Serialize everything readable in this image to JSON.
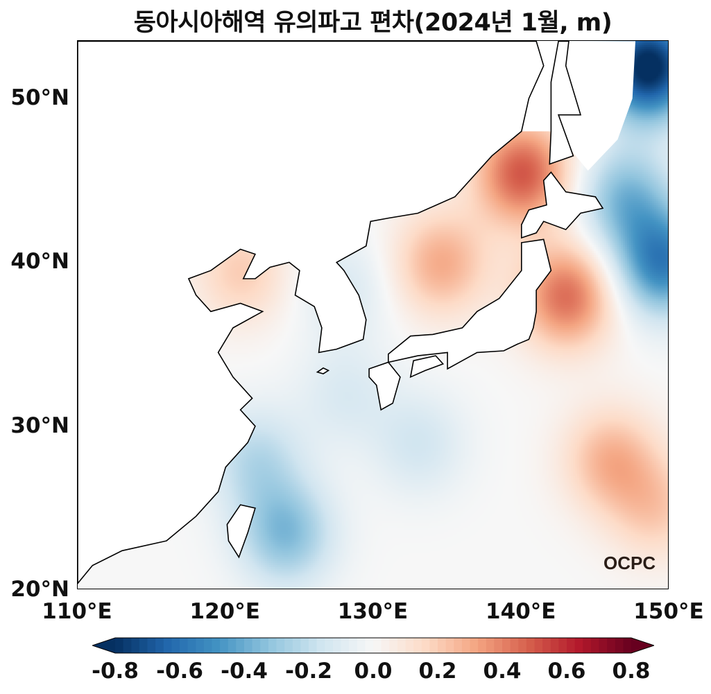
{
  "title": "동아시아해역 유의파고 편차(2024년 1월, m)",
  "logo_text": "OCPC",
  "chart_data": {
    "type": "heatmap",
    "title": "동아시아해역 유의파고 편차(2024년 1월, m)",
    "xlim": [
      110,
      150
    ],
    "ylim": [
      20,
      53.5
    ],
    "x_ticks": [
      "110°E",
      "120°E",
      "130°E",
      "140°E",
      "150°E"
    ],
    "y_ticks": [
      "20°N",
      "30°N",
      "40°N",
      "50°N"
    ],
    "colorbar": {
      "cmap": "RdBu_r",
      "range": [
        -0.8,
        0.8
      ],
      "extend": "both",
      "ticks": [
        "-0.8",
        "-0.6",
        "-0.4",
        "-0.2",
        "0.0",
        "0.2",
        "0.4",
        "0.6",
        "0.8"
      ],
      "colors": [
        "#053061",
        "#2166ac",
        "#4393c3",
        "#92c5de",
        "#d1e5f0",
        "#f7f7f7",
        "#fddbc7",
        "#f4a582",
        "#d6604d",
        "#b2182b",
        "#67001f"
      ]
    },
    "field_features": [
      {
        "lon": 140,
        "lat": 45.5,
        "value": 0.5
      },
      {
        "lon": 134.5,
        "lat": 40,
        "value": 0.3
      },
      {
        "lon": 143,
        "lat": 38,
        "value": 0.45
      },
      {
        "lon": 146,
        "lat": 28,
        "value": 0.28
      },
      {
        "lon": 149,
        "lat": 25,
        "value": 0.2
      },
      {
        "lon": 121,
        "lat": 39.5,
        "value": 0.2
      },
      {
        "lon": 124,
        "lat": 23.5,
        "value": -0.35
      },
      {
        "lon": 122,
        "lat": 28,
        "value": -0.22
      },
      {
        "lon": 148.5,
        "lat": 52,
        "value": -0.85
      },
      {
        "lon": 149.5,
        "lat": 40,
        "value": -0.55
      },
      {
        "lon": 147,
        "lat": 44,
        "value": -0.35
      },
      {
        "lon": 128,
        "lat": 38.5,
        "value": -0.12
      },
      {
        "lon": 133,
        "lat": 29,
        "value": -0.15
      },
      {
        "lon": 128,
        "lat": 32,
        "value": -0.12
      }
    ]
  }
}
